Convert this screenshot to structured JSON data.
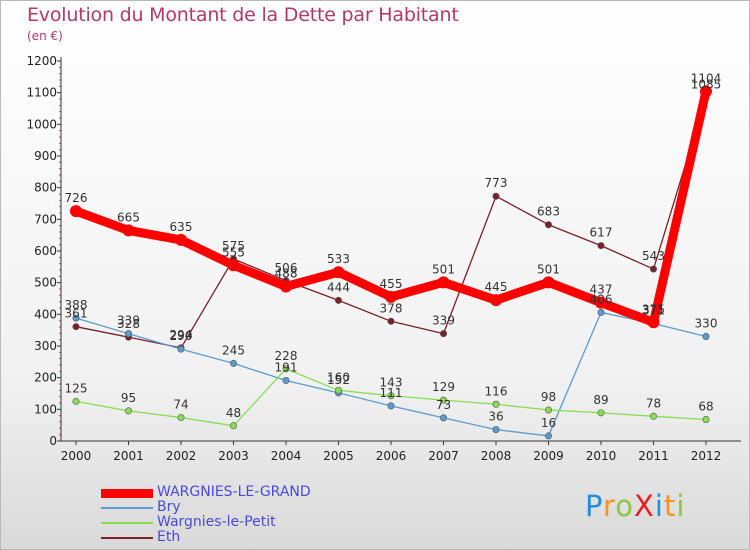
{
  "header": {
    "title": "Evolution du Montant de la Dette par Habitant",
    "subtitle": "(en €)"
  },
  "logo": {
    "text": "ProXiti",
    "colors": [
      "#1f8fd6",
      "#f7941d",
      "#8dc63f",
      "#ed1c24",
      "#1f8fd6",
      "#f7941d",
      "#8dc63f"
    ]
  },
  "chart_data": {
    "type": "line",
    "title": "Evolution du Montant de la Dette par Habitant",
    "subtitle": "(en €)",
    "x": [
      "2000",
      "2001",
      "2002",
      "2003",
      "2004",
      "2005",
      "2006",
      "2007",
      "2008",
      "2009",
      "2010",
      "2011",
      "2012"
    ],
    "ylim": [
      0,
      1200
    ],
    "yticks": [
      "0",
      "100",
      "200",
      "300",
      "400",
      "500",
      "600",
      "700",
      "800",
      "900",
      "1000",
      "1100",
      "1200"
    ],
    "grid": false,
    "legend_position": "bottom-left",
    "series": [
      {
        "name": "WARGNIES-LE-GRAND",
        "color": "#ff0000",
        "values": [
          726,
          665,
          635,
          555,
          488,
          533,
          455,
          501,
          445,
          501,
          437,
          375,
          1104
        ]
      },
      {
        "name": "Bry",
        "color": "#5a9bd1",
        "values": [
          388,
          339,
          290,
          245,
          191,
          152,
          111,
          73,
          36,
          16,
          406,
          371,
          330
        ]
      },
      {
        "name": "Wargnies-le-Petit",
        "color": "#88dd55",
        "values": [
          125,
          95,
          74,
          48,
          228,
          160,
          143,
          129,
          116,
          98,
          89,
          78,
          68
        ]
      },
      {
        "name": "Eth",
        "color": "#7a2028",
        "values": [
          361,
          328,
          294,
          575,
          506,
          444,
          378,
          339,
          773,
          683,
          617,
          543,
          1085
        ]
      }
    ]
  }
}
